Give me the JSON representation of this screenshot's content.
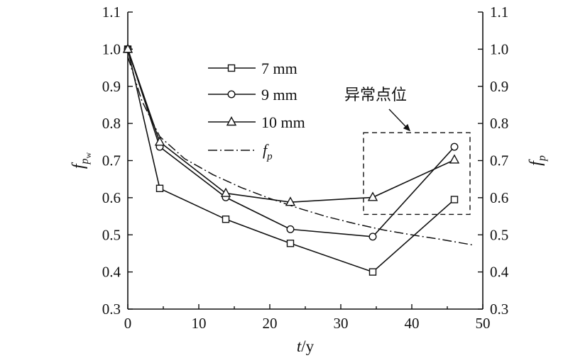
{
  "chart_data": {
    "type": "line",
    "x_axis": {
      "label_italic": "t",
      "label_rest": "/y",
      "range": [
        0,
        50
      ],
      "ticks": [
        0,
        10,
        20,
        30,
        40,
        50
      ],
      "tick_labels": [
        "0",
        "10",
        "20",
        "30",
        "40",
        "50"
      ]
    },
    "y_axis_left": {
      "label_base": "f",
      "label_sub": "p",
      "label_subsub": "w",
      "range": [
        0.3,
        1.1
      ],
      "ticks": [
        0.3,
        0.4,
        0.5,
        0.6,
        0.7,
        0.8,
        0.9,
        1.0,
        1.1
      ],
      "tick_labels": [
        "0.3",
        "0.4",
        "0.5",
        "0.6",
        "0.7",
        "0.8",
        "0.9",
        "1.0",
        "1.1"
      ]
    },
    "y_axis_right": {
      "label_base": "f",
      "label_sub": "p",
      "range": [
        0.3,
        1.1
      ],
      "ticks": [
        0.3,
        0.4,
        0.5,
        0.6,
        0.7,
        0.8,
        0.9,
        1.0,
        1.1
      ],
      "tick_labels": [
        "0.3",
        "0.4",
        "0.5",
        "0.6",
        "0.7",
        "0.8",
        "0.9",
        "1.0",
        "1.1"
      ]
    },
    "series": [
      {
        "name": "7 mm",
        "marker": "square",
        "x": [
          0,
          4.5,
          13.8,
          22.9,
          34.5,
          46
        ],
        "y": [
          1.0,
          0.625,
          0.542,
          0.477,
          0.4,
          0.595
        ]
      },
      {
        "name": "9 mm",
        "marker": "circle",
        "x": [
          0,
          4.5,
          13.8,
          22.9,
          34.5,
          46
        ],
        "y": [
          1.0,
          0.737,
          0.601,
          0.515,
          0.495,
          0.737
        ]
      },
      {
        "name": "10 mm",
        "marker": "triangle",
        "x": [
          0,
          4.5,
          13.8,
          22.9,
          34.5,
          46
        ],
        "y": [
          1.0,
          0.75,
          0.612,
          0.588,
          0.601,
          0.702
        ]
      }
    ],
    "reference_curve": {
      "name_base": "f",
      "name_sub": "p",
      "style": "dash-dot",
      "x": [
        0,
        2,
        4.5,
        8,
        12,
        16,
        20,
        24,
        28,
        32,
        36,
        40,
        44,
        48.5
      ],
      "y": [
        0.98,
        0.86,
        0.765,
        0.705,
        0.662,
        0.627,
        0.598,
        0.572,
        0.549,
        0.53,
        0.513,
        0.5,
        0.488,
        0.473
      ]
    },
    "legend_placement": "upper-middle",
    "annotation": {
      "text": "异常点位",
      "box_x_range": [
        33.2,
        48.2
      ],
      "box_y_range": [
        0.555,
        0.775
      ]
    },
    "grid": false
  }
}
